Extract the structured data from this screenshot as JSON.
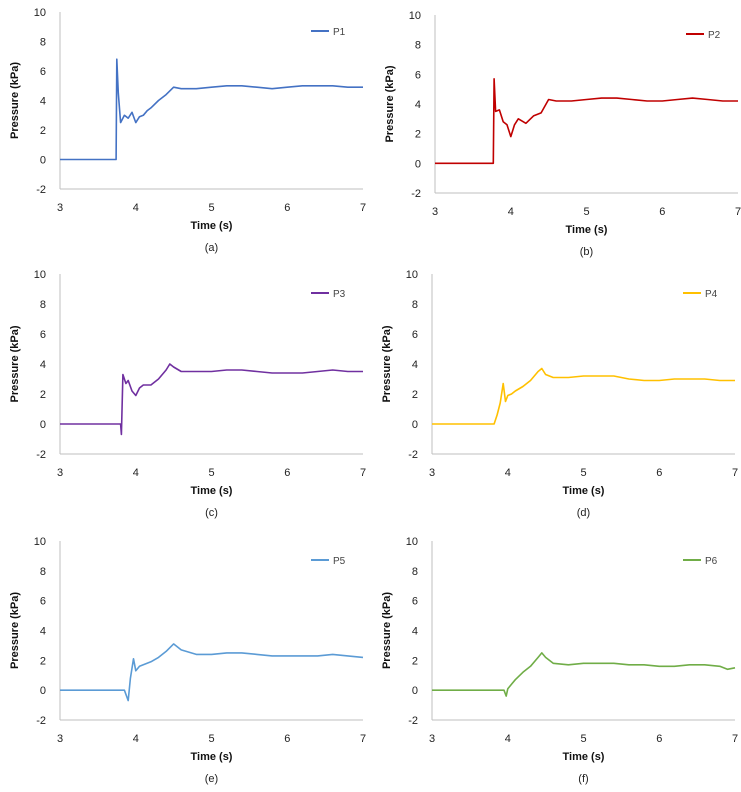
{
  "chart_data": [
    {
      "type": "line",
      "caption": "(a)",
      "xlabel": "Time (s)",
      "ylabel": "Pressure (kPa)",
      "xlim": [
        3,
        7
      ],
      "ylim": [
        -2,
        10
      ],
      "xticks": [
        "3",
        "4",
        "5",
        "6",
        "7"
      ],
      "yticks": [
        "-2",
        "0",
        "2",
        "4",
        "6",
        "8",
        "10"
      ],
      "series": [
        {
          "name": "P1",
          "color": "#4472C4",
          "x": [
            3.0,
            3.5,
            3.74,
            3.75,
            3.77,
            3.8,
            3.85,
            3.9,
            3.95,
            4.0,
            4.05,
            4.1,
            4.15,
            4.2,
            4.3,
            4.4,
            4.5,
            4.6,
            4.8,
            5.0,
            5.2,
            5.4,
            5.6,
            5.8,
            6.0,
            6.2,
            6.4,
            6.6,
            6.8,
            7.0
          ],
          "y": [
            0,
            0,
            0,
            6.8,
            4.5,
            2.5,
            3.0,
            2.8,
            3.2,
            2.5,
            2.9,
            3.0,
            3.3,
            3.5,
            4.0,
            4.4,
            4.9,
            4.8,
            4.8,
            4.9,
            5.0,
            5.0,
            4.9,
            4.8,
            4.9,
            5.0,
            5.0,
            5.0,
            4.9,
            4.9
          ]
        }
      ]
    },
    {
      "type": "line",
      "caption": "(b)",
      "xlabel": "Time (s)",
      "ylabel": "Pressure (kPa)",
      "xlim": [
        3,
        7
      ],
      "ylim": [
        -2,
        10
      ],
      "xticks": [
        "3",
        "4",
        "5",
        "6",
        "7"
      ],
      "yticks": [
        "-2",
        "0",
        "2",
        "4",
        "6",
        "8",
        "10"
      ],
      "series": [
        {
          "name": "P2",
          "color": "#C00000",
          "x": [
            3.0,
            3.5,
            3.77,
            3.78,
            3.8,
            3.85,
            3.9,
            3.95,
            4.0,
            4.05,
            4.1,
            4.2,
            4.3,
            4.4,
            4.5,
            4.6,
            4.8,
            5.0,
            5.2,
            5.4,
            5.6,
            5.8,
            6.0,
            6.2,
            6.4,
            6.6,
            6.8,
            7.0
          ],
          "y": [
            0,
            0,
            0,
            5.7,
            3.5,
            3.6,
            2.8,
            2.6,
            1.8,
            2.6,
            3.0,
            2.7,
            3.2,
            3.4,
            4.3,
            4.2,
            4.2,
            4.3,
            4.4,
            4.4,
            4.3,
            4.2,
            4.2,
            4.3,
            4.4,
            4.3,
            4.2,
            4.2
          ]
        }
      ]
    },
    {
      "type": "line",
      "caption": "(c)",
      "xlabel": "Time (s)",
      "ylabel": "Pressure (kPa)",
      "xlim": [
        3,
        7
      ],
      "ylim": [
        -2,
        10
      ],
      "xticks": [
        "3",
        "4",
        "5",
        "6",
        "7"
      ],
      "yticks": [
        "-2",
        "0",
        "2",
        "4",
        "6",
        "8",
        "10"
      ],
      "series": [
        {
          "name": "P3",
          "color": "#7030A0",
          "x": [
            3.0,
            3.5,
            3.8,
            3.81,
            3.83,
            3.87,
            3.9,
            3.95,
            4.0,
            4.05,
            4.1,
            4.2,
            4.3,
            4.4,
            4.45,
            4.5,
            4.6,
            4.8,
            5.0,
            5.2,
            5.4,
            5.6,
            5.8,
            6.0,
            6.2,
            6.4,
            6.6,
            6.8,
            7.0
          ],
          "y": [
            0,
            0,
            0,
            -0.7,
            3.3,
            2.7,
            2.9,
            2.2,
            1.9,
            2.4,
            2.6,
            2.6,
            3.0,
            3.6,
            4.0,
            3.8,
            3.5,
            3.5,
            3.5,
            3.6,
            3.6,
            3.5,
            3.4,
            3.4,
            3.4,
            3.5,
            3.6,
            3.5,
            3.5
          ]
        }
      ]
    },
    {
      "type": "line",
      "caption": "(d)",
      "xlabel": "Time (s)",
      "ylabel": "Pressure (kPa)",
      "xlim": [
        3,
        7
      ],
      "ylim": [
        -2,
        10
      ],
      "xticks": [
        "3",
        "4",
        "5",
        "6",
        "7"
      ],
      "yticks": [
        "-2",
        "0",
        "2",
        "4",
        "6",
        "8",
        "10"
      ],
      "series": [
        {
          "name": "P4",
          "color": "#FFC000",
          "x": [
            3.0,
            3.5,
            3.82,
            3.86,
            3.9,
            3.94,
            3.97,
            4.0,
            4.05,
            4.1,
            4.2,
            4.3,
            4.4,
            4.45,
            4.5,
            4.6,
            4.8,
            5.0,
            5.2,
            5.4,
            5.6,
            5.8,
            6.0,
            6.2,
            6.4,
            6.6,
            6.8,
            7.0
          ],
          "y": [
            0,
            0,
            0,
            0.6,
            1.4,
            2.7,
            1.5,
            1.9,
            2.0,
            2.2,
            2.5,
            2.9,
            3.5,
            3.7,
            3.3,
            3.1,
            3.1,
            3.2,
            3.2,
            3.2,
            3.0,
            2.9,
            2.9,
            3.0,
            3.0,
            3.0,
            2.9,
            2.9
          ]
        }
      ]
    },
    {
      "type": "line",
      "caption": "(e)",
      "xlabel": "Time (s)",
      "ylabel": "Pressure (kPa)",
      "xlim": [
        3,
        7
      ],
      "ylim": [
        -2,
        10
      ],
      "xticks": [
        "3",
        "4",
        "5",
        "6",
        "7"
      ],
      "yticks": [
        "-2",
        "0",
        "2",
        "4",
        "6",
        "8",
        "10"
      ],
      "series": [
        {
          "name": "P5",
          "color": "#5B9BD5",
          "x": [
            3.0,
            3.5,
            3.85,
            3.9,
            3.93,
            3.97,
            4.0,
            4.05,
            4.1,
            4.2,
            4.3,
            4.4,
            4.5,
            4.6,
            4.8,
            5.0,
            5.2,
            5.4,
            5.6,
            5.8,
            6.0,
            6.2,
            6.4,
            6.6,
            6.8,
            7.0
          ],
          "y": [
            0,
            0,
            0,
            -0.7,
            0.8,
            2.1,
            1.3,
            1.6,
            1.7,
            1.9,
            2.2,
            2.6,
            3.1,
            2.7,
            2.4,
            2.4,
            2.5,
            2.5,
            2.4,
            2.3,
            2.3,
            2.3,
            2.3,
            2.4,
            2.3,
            2.2
          ]
        }
      ]
    },
    {
      "type": "line",
      "caption": "(f)",
      "xlabel": "Time (s)",
      "ylabel": "Pressure (kPa)",
      "xlim": [
        3,
        7
      ],
      "ylim": [
        -2,
        10
      ],
      "xticks": [
        "3",
        "4",
        "5",
        "6",
        "7"
      ],
      "yticks": [
        "-2",
        "0",
        "2",
        "4",
        "6",
        "8",
        "10"
      ],
      "series": [
        {
          "name": "P6",
          "color": "#70AD47",
          "x": [
            3.0,
            3.5,
            3.9,
            3.95,
            3.98,
            4.0,
            4.05,
            4.1,
            4.2,
            4.3,
            4.4,
            4.45,
            4.5,
            4.6,
            4.8,
            5.0,
            5.2,
            5.4,
            5.6,
            5.8,
            6.0,
            6.2,
            6.4,
            6.6,
            6.8,
            6.9,
            7.0
          ],
          "y": [
            0,
            0,
            0,
            0,
            -0.4,
            0.1,
            0.4,
            0.7,
            1.2,
            1.6,
            2.2,
            2.5,
            2.2,
            1.8,
            1.7,
            1.8,
            1.8,
            1.8,
            1.7,
            1.7,
            1.6,
            1.6,
            1.7,
            1.7,
            1.6,
            1.4,
            1.5
          ]
        }
      ]
    }
  ]
}
